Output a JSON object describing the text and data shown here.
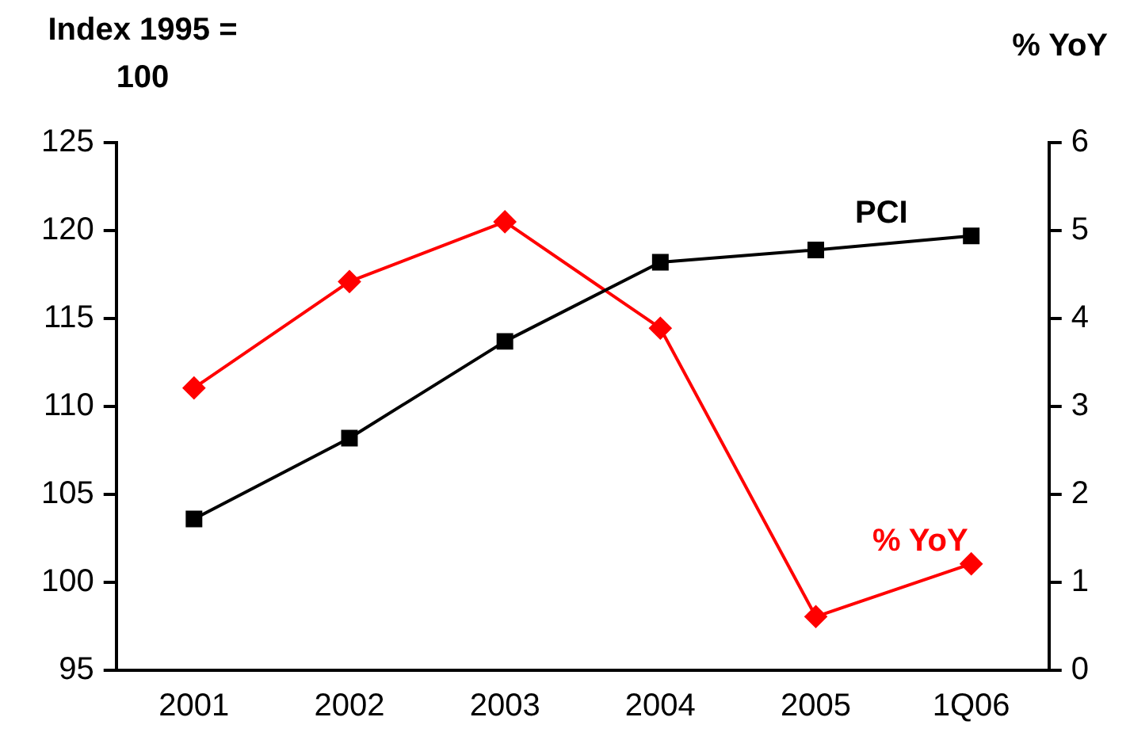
{
  "chart_data": {
    "type": "line",
    "ylabel": "Index 1995 = 100",
    "y2label": "% YoY",
    "categories": [
      "2001",
      "2002",
      "2003",
      "2004",
      "2005",
      "1Q06"
    ],
    "series": [
      {
        "name": "PCI",
        "color": "#000000",
        "marker": "square",
        "values": [
          103.6,
          108.2,
          113.7,
          118.2,
          118.9,
          119.7
        ]
      },
      {
        "name": "% YoY",
        "color": "#ff0000",
        "marker": "diamond",
        "axis": "y2",
        "values": [
          3.21,
          4.42,
          5.1,
          3.89,
          0.61,
          1.21
        ]
      }
    ],
    "ylim": [
      95,
      125
    ],
    "yticks": [
      95,
      100,
      105,
      110,
      115,
      120,
      125
    ],
    "y2lim": [
      0,
      6
    ],
    "y2ticks": [
      0,
      1,
      2,
      3,
      4,
      5,
      6
    ]
  }
}
